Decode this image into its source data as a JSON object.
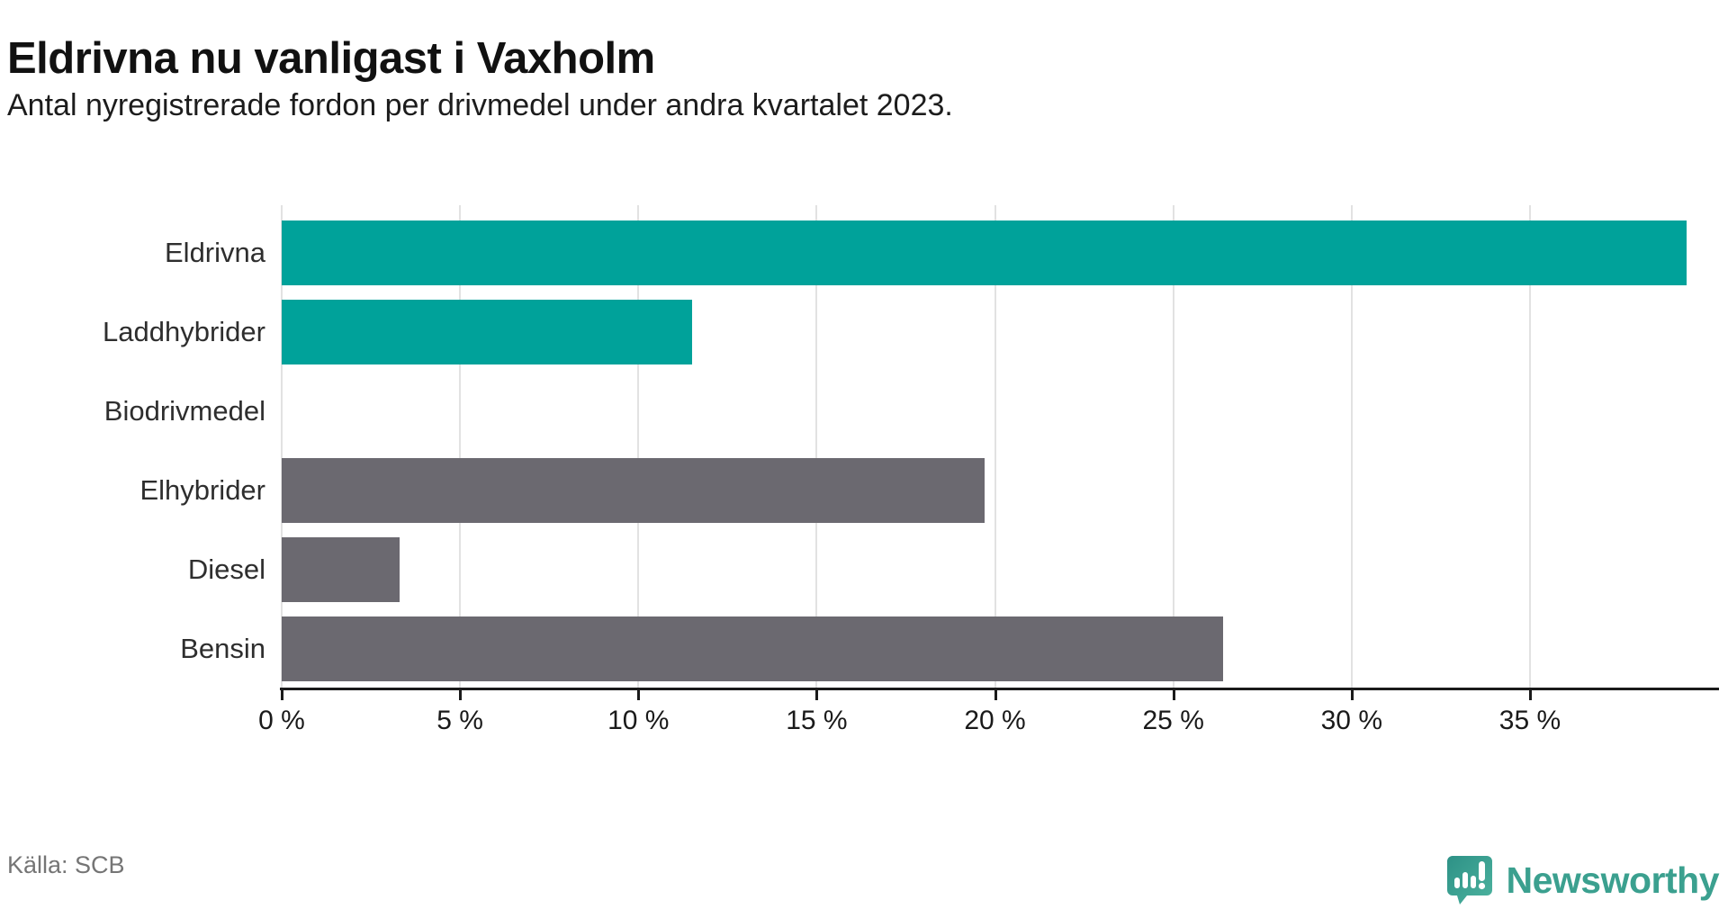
{
  "title": "Eldrivna nu vanligast i Vaxholm",
  "subtitle": "Antal nyregistrerade fordon per drivmedel under andra kvartalet 2023.",
  "source": "Källa: SCB",
  "brand": {
    "name": "Newsworthy"
  },
  "colors": {
    "highlight": "#00a29a",
    "neutral": "#6b6970",
    "grid": "#e2e2e2",
    "axis": "#1a1a1a",
    "brand_teal": "#3ba08f"
  },
  "chart_data": {
    "type": "bar",
    "orientation": "horizontal",
    "title": "Eldrivna nu vanligast i Vaxholm",
    "subtitle": "Antal nyregistrerade fordon per drivmedel under andra kvartalet 2023.",
    "categories": [
      "Eldrivna",
      "Laddhybrider",
      "Biodrivmedel",
      "Elhybrider",
      "Diesel",
      "Bensin"
    ],
    "values": [
      39.4,
      11.5,
      0,
      19.7,
      3.3,
      26.4
    ],
    "unit": "%",
    "bar_color_keys": [
      "highlight",
      "highlight",
      "neutral",
      "neutral",
      "neutral",
      "neutral"
    ],
    "xlim": [
      0,
      40.3
    ],
    "ticks": [
      0,
      5,
      10,
      15,
      20,
      25,
      30,
      35
    ],
    "tick_labels": [
      "0 %",
      "5 %",
      "10 %",
      "15 %",
      "20 %",
      "25 %",
      "30 %",
      "35 %"
    ],
    "grid": true,
    "legend": false
  }
}
